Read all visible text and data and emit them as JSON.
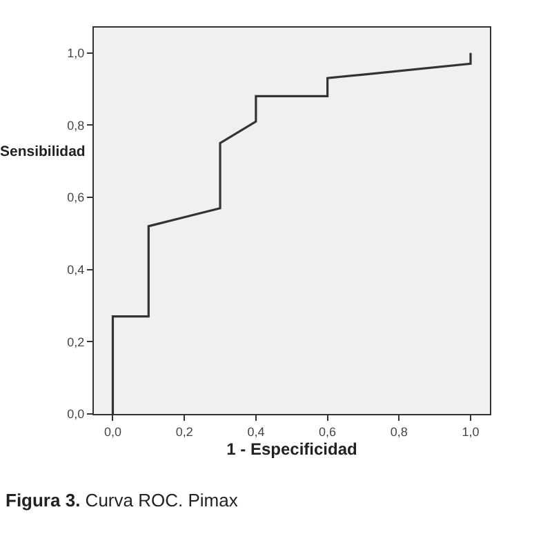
{
  "chart_data": {
    "type": "line",
    "xlabel": "1 - Especificidad",
    "ylabel": "Sensibilidad",
    "x": [
      0,
      0,
      0.1,
      0.1,
      0.3,
      0.3,
      0.4,
      0.4,
      0.6,
      0.6,
      0.7,
      1.0,
      1.0
    ],
    "series": [
      {
        "color": "#333333",
        "values": [
          0,
          0.27,
          0.27,
          0.52,
          0.57,
          0.75,
          0.81,
          0.88,
          0.88,
          0.93,
          0.94,
          0.97,
          1.0
        ]
      }
    ],
    "xlim": [
      -0.053,
      1.054
    ],
    "ylim": [
      0,
      1.07
    ],
    "xticks": [
      {
        "value": 0,
        "label": "0,0"
      },
      {
        "value": 0.2,
        "label": "0,2"
      },
      {
        "value": 0.4,
        "label": "0,4"
      },
      {
        "value": 0.6,
        "label": "0,6"
      },
      {
        "value": 0.8,
        "label": "0,8"
      },
      {
        "value": 1,
        "label": "1,0"
      }
    ],
    "yticks": [
      {
        "value": 0,
        "label": "0,0"
      },
      {
        "value": 0.2,
        "label": "0,2"
      },
      {
        "value": 0.4,
        "label": "0,4"
      },
      {
        "value": 0.6,
        "label": "0,6"
      },
      {
        "value": 0.8,
        "label": "0,8"
      },
      {
        "value": 1,
        "label": "1,0"
      }
    ],
    "grid": false,
    "marker": "none",
    "line_style": "solid",
    "annotations": [
      "Figura 3. Curva ROC. Pimax"
    ]
  }
}
